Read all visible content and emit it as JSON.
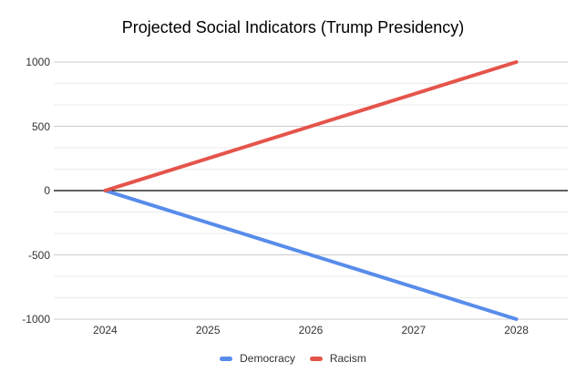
{
  "chart_data": {
    "type": "line",
    "title": "Projected Social Indicators (Trump Presidency)",
    "x": [
      2024,
      2025,
      2026,
      2027,
      2028
    ],
    "x_tick_labels": [
      "2024",
      "2025",
      "2026",
      "2027",
      "2028"
    ],
    "series": [
      {
        "name": "Democracy",
        "color": "#588ceb",
        "values": [
          0,
          -250,
          -500,
          -750,
          -1000
        ]
      },
      {
        "name": "Racism",
        "color": "#e5544b",
        "values": [
          0,
          250,
          500,
          750,
          1000
        ]
      }
    ],
    "xlabel": "",
    "ylabel": "",
    "ylim": [
      -1000,
      1000
    ],
    "yticks": [
      1000,
      500,
      0,
      -500,
      -1000
    ],
    "y_tick_labels": [
      "1000",
      "500",
      "0",
      "-500",
      "-1000"
    ],
    "minor_gridlines_between_majors": 2,
    "grid": true,
    "legend_position": "bottom",
    "colors": {
      "background": "#ffffff",
      "title_text": "#000000",
      "tick_text": "#333333",
      "major_gridline": "#cccccc",
      "minor_gridline": "#ebebeb",
      "zero_axis": "#000000"
    }
  }
}
